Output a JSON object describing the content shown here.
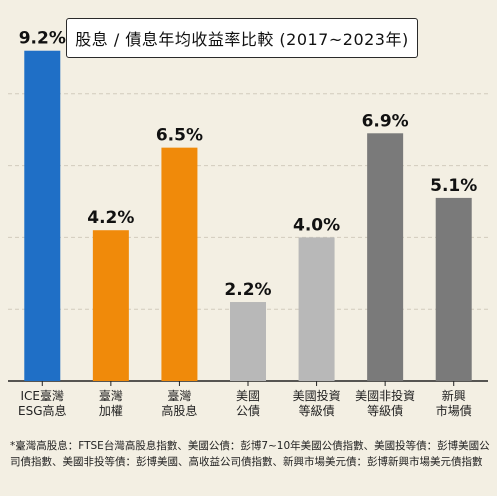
{
  "chart_data": {
    "type": "bar",
    "title": "股息 / 債息年均收益率比較 (2017~2023年)",
    "categories": [
      [
        "ICE臺灣",
        "ESG高息"
      ],
      [
        "臺灣",
        "加權"
      ],
      [
        "臺灣",
        "高股息"
      ],
      [
        "美國",
        "公債"
      ],
      [
        "美國投資",
        "等級債"
      ],
      [
        "美國非投資",
        "等級債"
      ],
      [
        "新興",
        "市場債"
      ]
    ],
    "values": [
      9.2,
      4.2,
      6.5,
      2.2,
      4.0,
      6.9,
      5.1
    ],
    "value_labels": [
      "9.2%",
      "4.2%",
      "6.5%",
      "2.2%",
      "4.0%",
      "6.9%",
      "5.1%"
    ],
    "colors": [
      "#1f6fc6",
      "#f08a0a",
      "#f08a0a",
      "#b8b8b8",
      "#b8b8b8",
      "#7a7a7a",
      "#7a7a7a"
    ],
    "ylim": [
      0,
      10
    ],
    "grid": true,
    "gridline_values": [
      2,
      4,
      6,
      8
    ]
  },
  "footnote": "*臺灣高股息：FTSE台灣高股息指數、美國公債：彭博7~10年美國公債指數、美國投等債：彭博美國公司債指數、美國非投等債：彭博美國、高收益公司債指數、新興市場美元債：彭博新興市場美元債指數"
}
